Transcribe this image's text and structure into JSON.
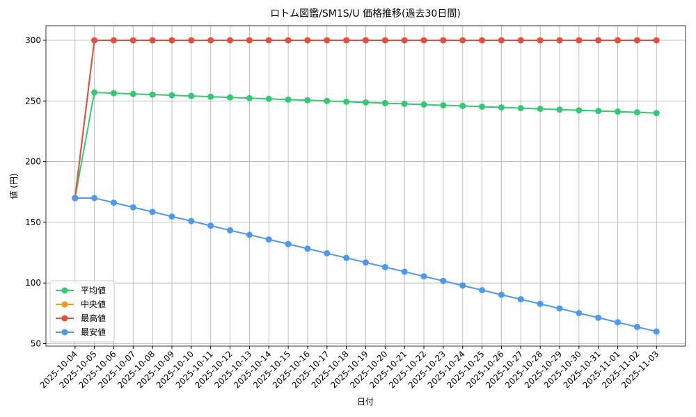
{
  "chart_data": {
    "type": "line",
    "title": "ロトム図鑑/SM1S/U 価格推移(過去30日間)",
    "x_label": "日付",
    "y_label": "値 (円)",
    "categories": [
      "2025-10-04",
      "2025-10-05",
      "2025-10-06",
      "2025-10-07",
      "2025-10-08",
      "2025-10-09",
      "2025-10-10",
      "2025-10-11",
      "2025-10-12",
      "2025-10-13",
      "2025-10-14",
      "2025-10-15",
      "2025-10-16",
      "2025-10-17",
      "2025-10-18",
      "2025-10-19",
      "2025-10-20",
      "2025-10-21",
      "2025-10-22",
      "2025-10-23",
      "2025-10-24",
      "2025-10-25",
      "2025-10-26",
      "2025-10-27",
      "2025-10-28",
      "2025-10-29",
      "2025-10-30",
      "2025-10-31",
      "2025-11-01",
      "2025-11-02",
      "2025-11-03"
    ],
    "series": [
      {
        "name": "平均値",
        "color": "#2ecc71",
        "values": [
          170,
          257,
          256.4,
          255.8,
          255.2,
          254.7,
          254.1,
          253.5,
          252.9,
          252.3,
          251.7,
          251.1,
          250.6,
          250,
          249.4,
          248.8,
          248.2,
          247.6,
          247,
          246.4,
          245.9,
          245.3,
          244.7,
          244.1,
          243.5,
          242.9,
          242.3,
          241.8,
          241.2,
          240.6,
          240
        ]
      },
      {
        "name": "中央値",
        "color": "#f39c12",
        "values": [
          170,
          300,
          300,
          300,
          300,
          300,
          300,
          300,
          300,
          300,
          300,
          300,
          300,
          300,
          300,
          300,
          300,
          300,
          300,
          300,
          300,
          300,
          300,
          300,
          300,
          300,
          300,
          300,
          300,
          300,
          300
        ]
      },
      {
        "name": "最高値",
        "color": "#e74c3c",
        "values": [
          170,
          300,
          300,
          300,
          300,
          300,
          300,
          300,
          300,
          300,
          300,
          300,
          300,
          300,
          300,
          300,
          300,
          300,
          300,
          300,
          300,
          300,
          300,
          300,
          300,
          300,
          300,
          300,
          300,
          300,
          300
        ]
      },
      {
        "name": "最安値",
        "color": "#4a9af5",
        "values": [
          170,
          170,
          166.2,
          162.4,
          158.6,
          154.8,
          151,
          147.2,
          143.4,
          139.7,
          135.9,
          132.1,
          128.3,
          124.5,
          120.7,
          116.9,
          113.1,
          109.3,
          105.5,
          101.7,
          97.9,
          94.1,
          90.3,
          86.6,
          82.8,
          79,
          75.2,
          71.4,
          67.6,
          63.8,
          60
        ]
      }
    ],
    "ylim": [
      48,
      312
    ],
    "yticks": [
      50,
      100,
      150,
      200,
      250,
      300
    ],
    "grid": true,
    "legend": "lower left"
  }
}
